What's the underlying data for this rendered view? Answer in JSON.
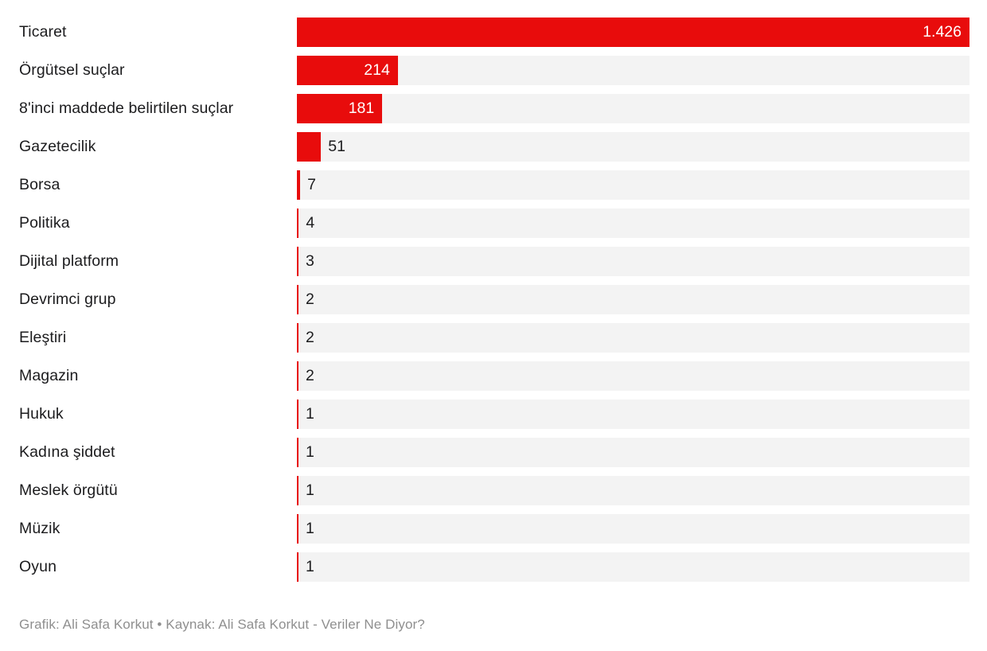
{
  "chart_data": {
    "type": "bar",
    "orientation": "horizontal",
    "title": "",
    "xlabel": "",
    "ylabel": "",
    "xlim": [
      0,
      1426
    ],
    "grid": false,
    "legend_position": "none",
    "bar_color": "#e80c0c",
    "track_color": "#f3f3f3",
    "label_color": "#1c1c1e",
    "value_inside_color": "#ffffff",
    "categories": [
      "Ticaret",
      "Örgütsel suçlar",
      "8'inci maddede belirtilen suçlar",
      "Gazetecilik",
      "Borsa",
      "Politika",
      "Dijital platform",
      "Devrimci grup",
      "Eleştiri",
      "Magazin",
      "Hukuk",
      "Kadına şiddet",
      "Meslek örgütü",
      "Müzik",
      "Oyun"
    ],
    "values": [
      1426,
      214,
      181,
      51,
      7,
      4,
      3,
      2,
      2,
      2,
      1,
      1,
      1,
      1,
      1
    ],
    "value_labels": [
      "1.426",
      "214",
      "181",
      "51",
      "7",
      "4",
      "3",
      "2",
      "2",
      "2",
      "1",
      "1",
      "1",
      "1",
      "1"
    ]
  },
  "footer": {
    "attribution": "Grafik: Ali Safa Korkut • Kaynak: Ali Safa Korkut - Veriler Ne Diyor?"
  }
}
